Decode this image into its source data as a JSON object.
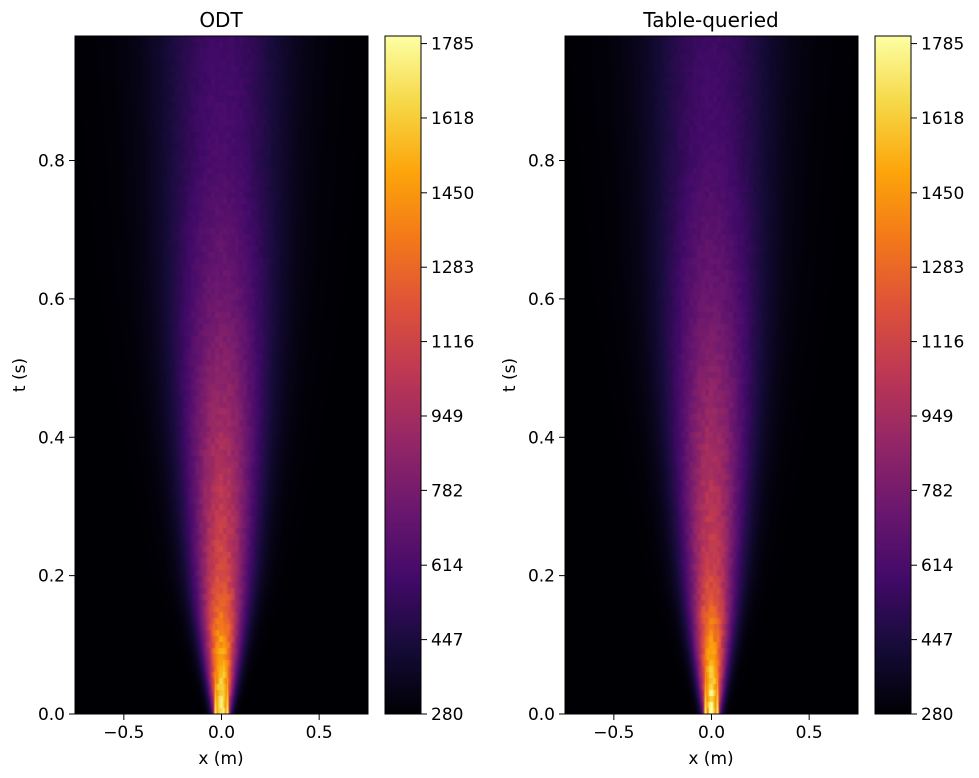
{
  "chart_data": [
    {
      "type": "heatmap",
      "title": "ODT",
      "xlabel": "x (m)",
      "ylabel": "t (s)",
      "xlim": [
        -0.75,
        0.75
      ],
      "ylim": [
        0.0,
        0.98
      ],
      "x_ticks": [
        -0.5,
        0.0,
        0.5
      ],
      "x_tick_labels": [
        "−0.5",
        "0.0",
        "0.5"
      ],
      "y_ticks": [
        0.0,
        0.2,
        0.4,
        0.6,
        0.8
      ],
      "y_tick_labels": [
        "0.0",
        "0.2",
        "0.4",
        "0.6",
        "0.8"
      ],
      "grid": false,
      "colormap": "inferno",
      "colorbar": {
        "min": 280,
        "max": 1802,
        "ticks": [
          280,
          447,
          614,
          782,
          949,
          1116,
          1283,
          1450,
          1618,
          1785
        ],
        "tick_labels": [
          "280",
          "447",
          "614",
          "782",
          "949",
          "1116",
          "1283",
          "1450",
          "1618",
          "1785"
        ]
      },
      "field": {
        "ambient_value": 280,
        "jet_centers_x": [
          -0.03,
          0.03
        ],
        "jet_peak_value": 1785,
        "t_inlet": 0.07,
        "description_values": [
          {
            "t": 0.0,
            "centerline_value": 1785
          },
          {
            "t": 0.2,
            "centerline_value": 1150
          },
          {
            "t": 0.4,
            "centerline_value": 950
          },
          {
            "t": 0.6,
            "centerline_value": 750
          },
          {
            "t": 0.8,
            "centerline_value": 620
          },
          {
            "t": 0.98,
            "centerline_value": 580
          }
        ],
        "half_width_at_t": [
          {
            "t": 0.0,
            "x": 0.05
          },
          {
            "t": 0.2,
            "x": 0.18
          },
          {
            "t": 0.4,
            "x": 0.26
          },
          {
            "t": 0.6,
            "x": 0.33
          },
          {
            "t": 0.8,
            "x": 0.38
          },
          {
            "t": 0.98,
            "x": 0.42
          }
        ]
      }
    },
    {
      "type": "heatmap",
      "title": "Table-queried",
      "xlabel": "x (m)",
      "ylabel": "t (s)",
      "xlim": [
        -0.75,
        0.75
      ],
      "ylim": [
        0.0,
        0.98
      ],
      "x_ticks": [
        -0.5,
        0.0,
        0.5
      ],
      "x_tick_labels": [
        "−0.5",
        "0.0",
        "0.5"
      ],
      "y_ticks": [
        0.0,
        0.2,
        0.4,
        0.6,
        0.8
      ],
      "y_tick_labels": [
        "0.0",
        "0.2",
        "0.4",
        "0.6",
        "0.8"
      ],
      "grid": false,
      "colormap": "inferno",
      "colorbar": {
        "min": 280,
        "max": 1802,
        "ticks": [
          280,
          447,
          614,
          782,
          949,
          1116,
          1283,
          1450,
          1618,
          1785
        ],
        "tick_labels": [
          "280",
          "447",
          "614",
          "782",
          "949",
          "1116",
          "1283",
          "1450",
          "1618",
          "1785"
        ]
      },
      "field": {
        "ambient_value": 280,
        "jet_centers_x": [
          -0.03,
          0.03
        ],
        "jet_peak_value": 1785,
        "t_inlet": 0.07,
        "description_values": [
          {
            "t": 0.0,
            "centerline_value": 1785
          },
          {
            "t": 0.2,
            "centerline_value": 1120
          },
          {
            "t": 0.4,
            "centerline_value": 930
          },
          {
            "t": 0.6,
            "centerline_value": 740
          },
          {
            "t": 0.8,
            "centerline_value": 610
          },
          {
            "t": 0.98,
            "centerline_value": 570
          }
        ],
        "half_width_at_t": [
          {
            "t": 0.0,
            "x": 0.05
          },
          {
            "t": 0.2,
            "x": 0.17
          },
          {
            "t": 0.4,
            "x": 0.25
          },
          {
            "t": 0.6,
            "x": 0.32
          },
          {
            "t": 0.8,
            "x": 0.37
          },
          {
            "t": 0.98,
            "x": 0.41
          }
        ]
      }
    }
  ]
}
